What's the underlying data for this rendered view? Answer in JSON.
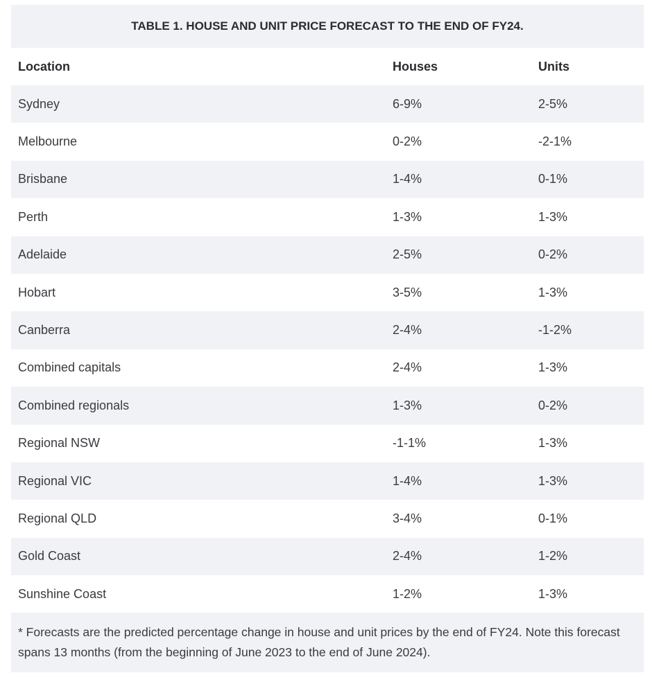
{
  "table": {
    "caption": "TABLE 1. HOUSE AND UNIT PRICE FORECAST TO THE END OF FY24.",
    "headers": [
      "Location",
      "Houses",
      "Units"
    ],
    "rows": [
      [
        "Sydney",
        "6-9%",
        "2-5%"
      ],
      [
        "Melbourne",
        "0-2%",
        "-2-1%"
      ],
      [
        "Brisbane",
        "1-4%",
        "0-1%"
      ],
      [
        "Perth",
        "1-3%",
        "1-3%"
      ],
      [
        "Adelaide",
        "2-5%",
        "0-2%"
      ],
      [
        "Hobart",
        "3-5%",
        "1-3%"
      ],
      [
        "Canberra",
        "2-4%",
        "-1-2%"
      ],
      [
        "Combined capitals",
        "2-4%",
        "1-3%"
      ],
      [
        "Combined regionals",
        "1-3%",
        "0-2%"
      ],
      [
        "Regional NSW",
        "-1-1%",
        "1-3%"
      ],
      [
        "Regional VIC",
        "1-4%",
        "1-3%"
      ],
      [
        "Regional QLD",
        "3-4%",
        "0-1%"
      ],
      [
        "Gold Coast",
        "2-4%",
        "1-2%"
      ],
      [
        "Sunshine Coast",
        "1-2%",
        "1-3%"
      ]
    ],
    "footnote": "* Forecasts are the predicted percentage change in house and unit prices by the end of FY24. Note this forecast spans 13 months (from the beginning of June 2023 to the end of June 2024)."
  }
}
